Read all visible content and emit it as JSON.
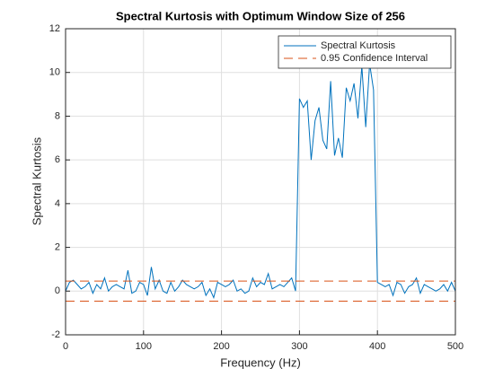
{
  "chart_data": {
    "type": "line",
    "title": "Spectral Kurtosis with Optimum Window Size of 256",
    "xlabel": "Frequency (Hz)",
    "ylabel": "Spectral Kurtosis",
    "xlim": [
      0,
      500
    ],
    "xticks": [
      0,
      100,
      200,
      300,
      400,
      500
    ],
    "ylim": [
      -2,
      12
    ],
    "yticks": [
      -2,
      0,
      2,
      4,
      6,
      8,
      10,
      12
    ],
    "grid": true,
    "legend": "upper right",
    "series": [
      {
        "name": "Spectral Kurtosis",
        "color": "#0072BD",
        "dash": false,
        "x": [
          0,
          5,
          10,
          15,
          20,
          25,
          30,
          35,
          40,
          45,
          50,
          55,
          60,
          65,
          70,
          75,
          80,
          85,
          90,
          95,
          100,
          105,
          110,
          115,
          120,
          125,
          130,
          135,
          140,
          145,
          150,
          155,
          160,
          165,
          170,
          175,
          180,
          185,
          190,
          195,
          200,
          205,
          210,
          215,
          220,
          225,
          230,
          235,
          240,
          245,
          250,
          255,
          260,
          265,
          270,
          275,
          280,
          285,
          290,
          295,
          300,
          305,
          310,
          315,
          320,
          325,
          330,
          335,
          340,
          345,
          350,
          355,
          360,
          365,
          370,
          375,
          380,
          385,
          390,
          395,
          400,
          405,
          410,
          415,
          420,
          425,
          430,
          435,
          440,
          445,
          450,
          455,
          460,
          465,
          470,
          475,
          480,
          485,
          490,
          495,
          500
        ],
        "values": [
          0.0,
          0.4,
          0.5,
          0.3,
          0.1,
          0.2,
          0.4,
          -0.1,
          0.3,
          0.1,
          0.6,
          0.0,
          0.2,
          0.3,
          0.2,
          0.1,
          0.95,
          -0.1,
          0.0,
          0.4,
          0.3,
          -0.2,
          1.1,
          0.1,
          0.5,
          0.0,
          -0.1,
          0.4,
          0.0,
          0.2,
          0.5,
          0.3,
          0.2,
          0.1,
          0.2,
          0.4,
          -0.2,
          0.1,
          -0.3,
          0.4,
          0.3,
          0.2,
          0.3,
          0.5,
          0.0,
          0.1,
          -0.1,
          0.0,
          0.6,
          0.2,
          0.4,
          0.3,
          0.8,
          0.1,
          0.2,
          0.3,
          0.2,
          0.4,
          0.6,
          0.0,
          8.8,
          8.4,
          8.7,
          6.0,
          7.8,
          8.4,
          6.9,
          6.5,
          9.6,
          6.2,
          7.0,
          6.1,
          9.3,
          8.7,
          9.5,
          7.9,
          10.3,
          7.5,
          10.4,
          9.2,
          0.4,
          0.3,
          0.2,
          0.3,
          -0.2,
          0.4,
          0.3,
          -0.1,
          0.2,
          0.3,
          0.6,
          -0.1,
          0.3,
          0.2,
          0.1,
          0.0,
          0.1,
          0.3,
          0.0,
          0.4,
          0.0
        ]
      },
      {
        "name": "0.95 Confidence Interval",
        "color": "#D95319",
        "dash": true,
        "x": [
          0,
          500
        ],
        "values": [
          0.46,
          0.46
        ]
      },
      {
        "color": "#D95319",
        "dash": true,
        "x": [
          0,
          500
        ],
        "values": [
          -0.46,
          -0.46
        ]
      }
    ]
  }
}
